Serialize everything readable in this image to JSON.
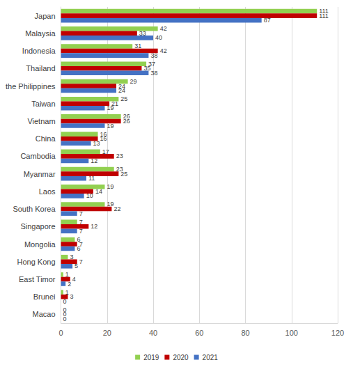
{
  "chart_data": {
    "type": "bar",
    "orientation": "horizontal",
    "categories": [
      "Japan",
      "Malaysia",
      "Indonesia",
      "Thailand",
      "the Philippines",
      "Taiwan",
      "Vietnam",
      "China",
      "Cambodia",
      "Myanmar",
      "Laos",
      "South Korea",
      "Singapore",
      "Mongolia",
      "Hong Kong",
      "East Timor",
      "Brunei",
      "Macao"
    ],
    "series": [
      {
        "name": "2019",
        "color": "#92d050",
        "values": [
          111,
          42,
          31,
          37,
          29,
          25,
          26,
          16,
          17,
          23,
          19,
          19,
          7,
          6,
          3,
          1,
          1,
          0
        ]
      },
      {
        "name": "2020",
        "color": "#c00000",
        "values": [
          111,
          33,
          42,
          35,
          24,
          21,
          26,
          16,
          23,
          25,
          14,
          22,
          12,
          7,
          7,
          4,
          3,
          0
        ]
      },
      {
        "name": "2021",
        "color": "#4472c4",
        "values": [
          87,
          40,
          38,
          38,
          24,
          19,
          19,
          13,
          12,
          11,
          10,
          7,
          7,
          6,
          5,
          2,
          0,
          0
        ]
      }
    ],
    "xlim": [
      0,
      120
    ],
    "xticks": [
      0,
      20,
      40,
      60,
      80,
      100,
      120
    ],
    "grid": true,
    "legend": "bottom",
    "data_labels": true
  }
}
